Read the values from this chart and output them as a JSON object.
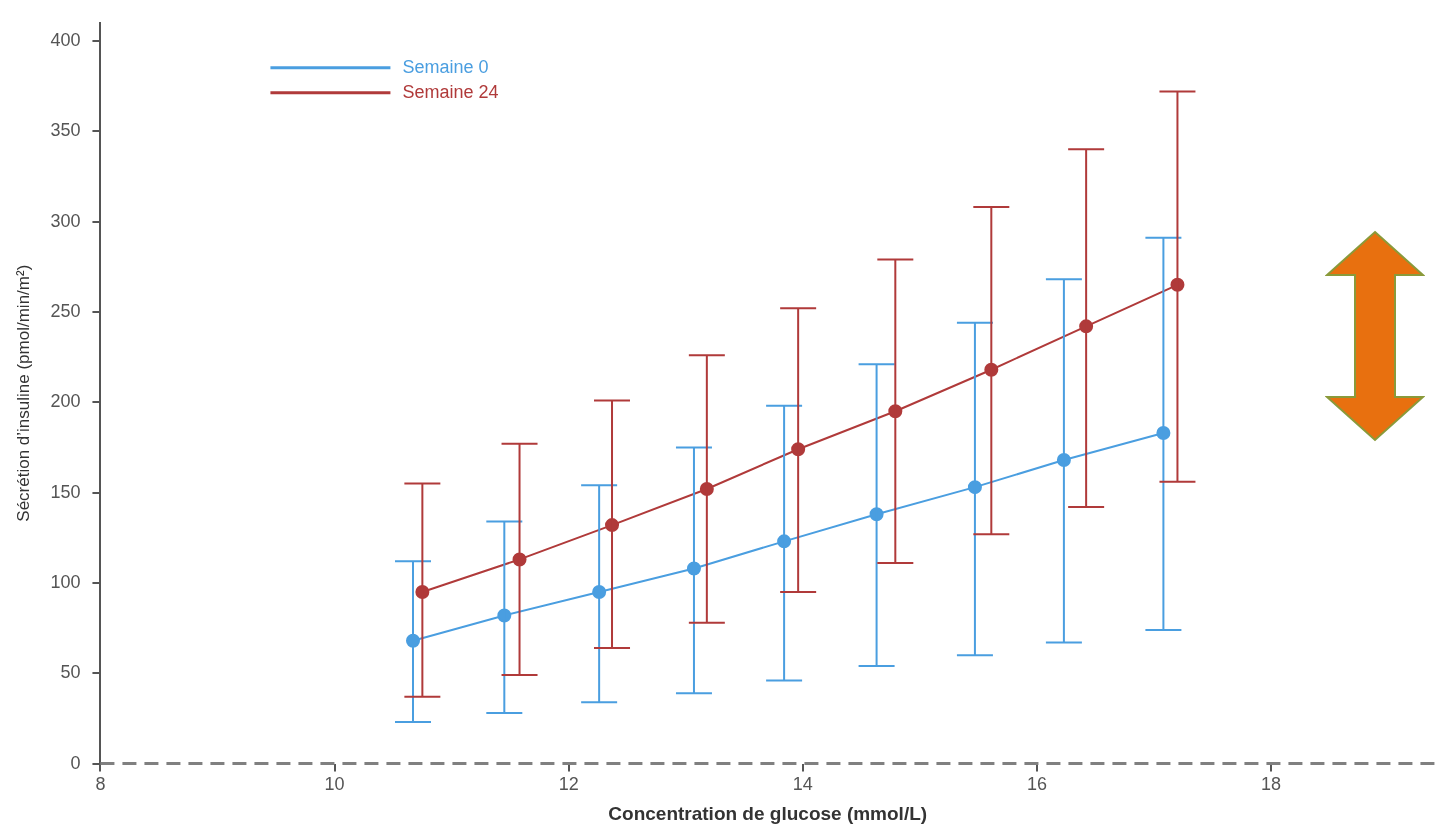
{
  "chart_data": {
    "type": "line",
    "xlabel": "Concentration de glucose (mmol/L)",
    "ylabel": "Sécrétion d’insuline (pmol/min/m²)",
    "xlim": [
      8,
      19.4
    ],
    "xticks": [
      8,
      10,
      12,
      14,
      16,
      18
    ],
    "ylim": [
      0,
      410
    ],
    "yticks": [
      0,
      50,
      100,
      150,
      200,
      250,
      300,
      350,
      400
    ],
    "grid": false,
    "legend": "top left",
    "marker": "circle",
    "line_style": "solid",
    "ref_lines": [
      {
        "axis": "y",
        "value": 0,
        "color": "#808080",
        "line_style": "dashed"
      }
    ],
    "series": [
      {
        "name": "Semaine 0",
        "color": "#4a9ee0",
        "x": [
          10.67,
          11.45,
          12.26,
          13.07,
          13.84,
          14.63,
          15.47,
          16.23,
          17.08
        ],
        "values": [
          68,
          82,
          95,
          108,
          123,
          138,
          153,
          168,
          183
        ],
        "errors": [
          [
            23,
            112
          ],
          [
            28,
            134
          ],
          [
            34,
            154
          ],
          [
            39,
            175
          ],
          [
            46,
            198
          ],
          [
            54,
            221
          ],
          [
            60,
            244
          ],
          [
            67,
            268
          ],
          [
            74,
            291
          ]
        ]
      },
      {
        "name": "Semaine 24",
        "color": "#b03a3a",
        "x": [
          10.75,
          11.58,
          12.37,
          13.18,
          13.96,
          14.79,
          15.61,
          16.42,
          17.2
        ],
        "values": [
          95,
          113,
          132,
          152,
          174,
          195,
          218,
          242,
          265
        ],
        "errors": [
          [
            37,
            155
          ],
          [
            49,
            177
          ],
          [
            64,
            201
          ],
          [
            78,
            226
          ],
          [
            95,
            252
          ],
          [
            111,
            279
          ],
          [
            127,
            308
          ],
          [
            142,
            340
          ],
          [
            156,
            372
          ]
        ]
      }
    ]
  }
}
